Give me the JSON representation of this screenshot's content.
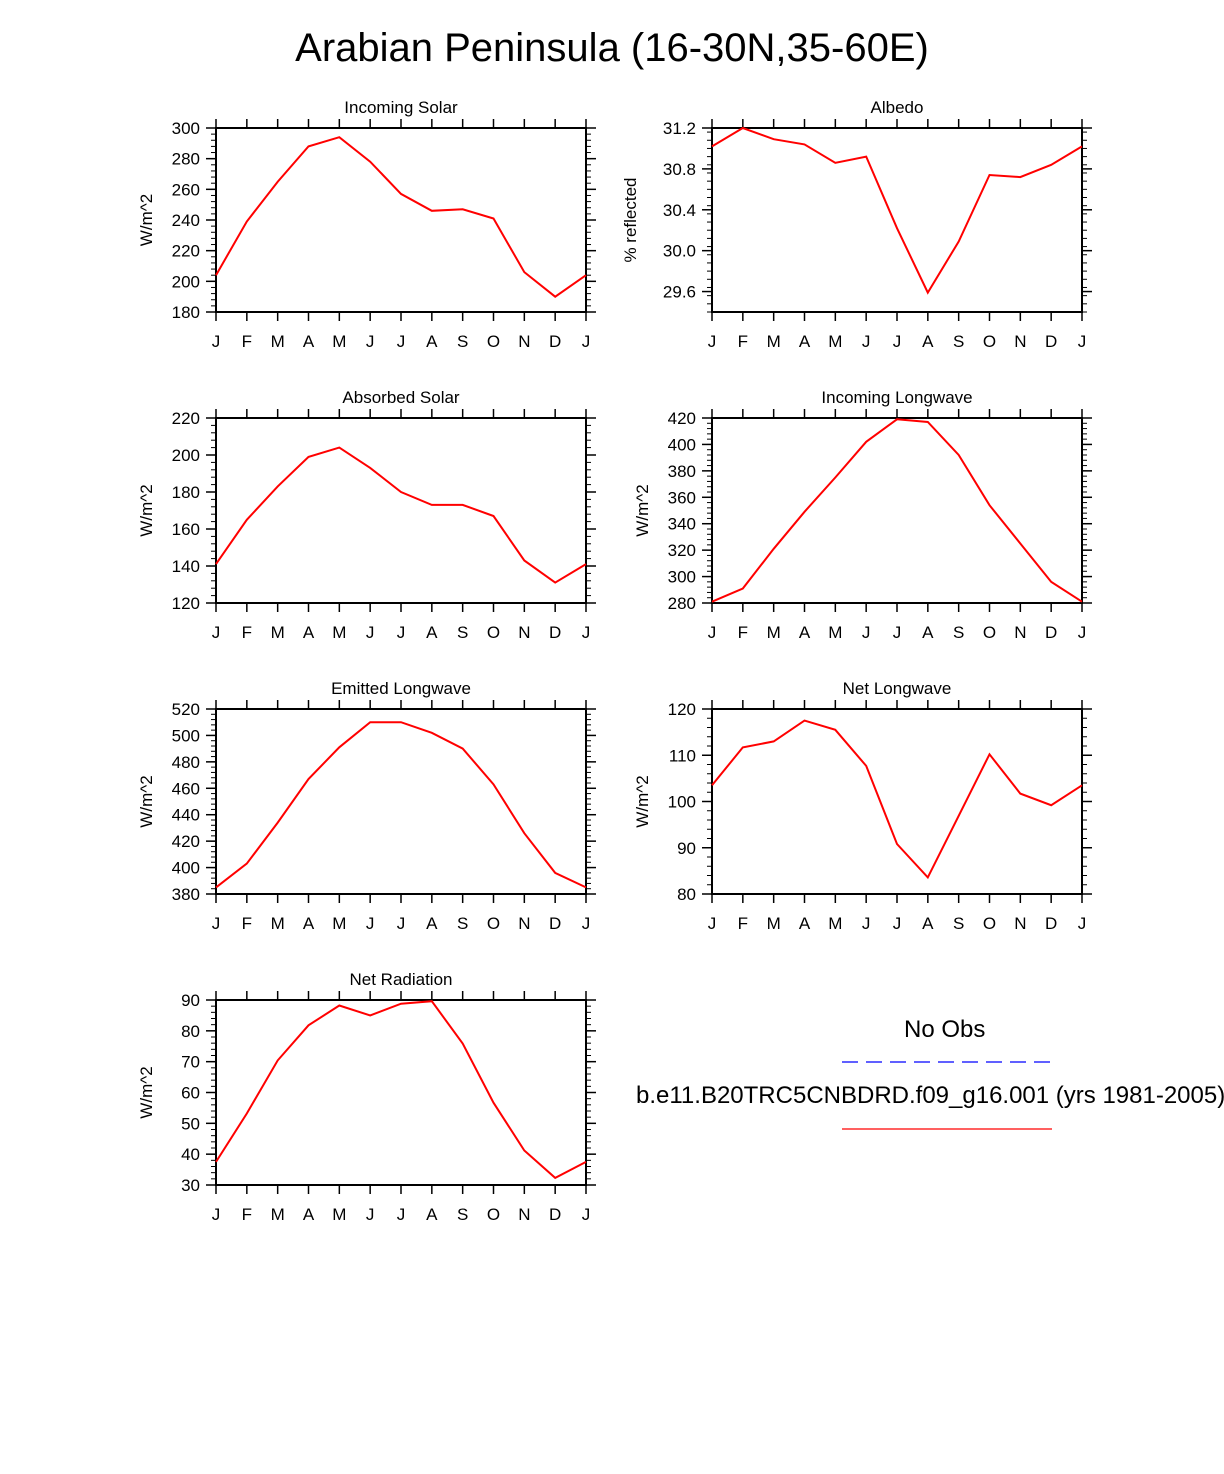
{
  "title": "Arabian Peninsula (16-30N,35-60E)",
  "months": [
    "J",
    "F",
    "M",
    "A",
    "M",
    "J",
    "J",
    "A",
    "S",
    "O",
    "N",
    "D",
    "J"
  ],
  "legend": {
    "obs_label": "No Obs",
    "obs_color": "#0000ff",
    "model_label": "b.e11.B20TRC5CNBDRD.f09_g16.001 (yrs 1981-2005)",
    "model_color": "#ff0000"
  },
  "chart_data": [
    {
      "type": "line",
      "title": "Incoming Solar",
      "ylabel": "W/m^2",
      "ylim": [
        180,
        300
      ],
      "yticks": [
        "180",
        "200",
        "220",
        "240",
        "260",
        "280",
        "300"
      ],
      "x": [
        "J",
        "F",
        "M",
        "A",
        "M",
        "J",
        "J",
        "A",
        "S",
        "O",
        "N",
        "D",
        "J"
      ],
      "series": [
        {
          "values": [
            204,
            239,
            265,
            288,
            294,
            278,
            257,
            246,
            247,
            241,
            206,
            190,
            204
          ]
        }
      ]
    },
    {
      "type": "line",
      "title": "Albedo",
      "ylabel": "% reflected",
      "ylim": [
        29.4,
        31.2
      ],
      "yticks": [
        "29.6",
        "30.0",
        "30.4",
        "30.8",
        "31.2"
      ],
      "x": [
        "J",
        "F",
        "M",
        "A",
        "M",
        "J",
        "J",
        "A",
        "S",
        "O",
        "N",
        "D",
        "J"
      ],
      "series": [
        {
          "values": [
            31.02,
            31.2,
            31.09,
            31.04,
            30.86,
            30.92,
            30.22,
            29.59,
            30.09,
            30.74,
            30.72,
            30.84,
            31.02
          ]
        }
      ]
    },
    {
      "type": "line",
      "title": "Absorbed Solar",
      "ylabel": "W/m^2",
      "ylim": [
        120,
        220
      ],
      "yticks": [
        "120",
        "140",
        "160",
        "180",
        "200",
        "220"
      ],
      "x": [
        "J",
        "F",
        "M",
        "A",
        "M",
        "J",
        "J",
        "A",
        "S",
        "O",
        "N",
        "D",
        "J"
      ],
      "series": [
        {
          "values": [
            141,
            165,
            183,
            199,
            204,
            193,
            180,
            173,
            173,
            167,
            143,
            131,
            141
          ]
        }
      ]
    },
    {
      "type": "line",
      "title": "Incoming Longwave",
      "ylabel": "W/m^2",
      "ylim": [
        280,
        420
      ],
      "yticks": [
        "280",
        "300",
        "320",
        "340",
        "360",
        "380",
        "400",
        "420"
      ],
      "x": [
        "J",
        "F",
        "M",
        "A",
        "M",
        "J",
        "J",
        "A",
        "S",
        "O",
        "N",
        "D",
        "J"
      ],
      "series": [
        {
          "values": [
            281,
            291,
            321,
            349,
            375,
            402,
            419,
            417,
            392,
            354,
            325,
            296,
            281
          ]
        }
      ]
    },
    {
      "type": "line",
      "title": "Emitted Longwave",
      "ylabel": "W/m^2",
      "ylim": [
        380,
        520
      ],
      "yticks": [
        "380",
        "400",
        "420",
        "440",
        "460",
        "480",
        "500",
        "520"
      ],
      "x": [
        "J",
        "F",
        "M",
        "A",
        "M",
        "J",
        "J",
        "A",
        "S",
        "O",
        "N",
        "D",
        "J"
      ],
      "series": [
        {
          "values": [
            385,
            403,
            434,
            467,
            491,
            510,
            510,
            502,
            490,
            463,
            426,
            396,
            385
          ]
        }
      ]
    },
    {
      "type": "line",
      "title": "Net Longwave",
      "ylabel": "W/m^2",
      "ylim": [
        80,
        120
      ],
      "yticks": [
        "80",
        "90",
        "100",
        "110",
        "120"
      ],
      "x": [
        "J",
        "F",
        "M",
        "A",
        "M",
        "J",
        "J",
        "A",
        "S",
        "O",
        "N",
        "D",
        "J"
      ],
      "series": [
        {
          "values": [
            103.5,
            111.7,
            113.0,
            117.5,
            115.5,
            107.7,
            90.8,
            83.6,
            96.9,
            110.2,
            101.7,
            99.2,
            103.5
          ]
        }
      ]
    },
    {
      "type": "line",
      "title": "Net Radiation",
      "ylabel": "W/m^2",
      "ylim": [
        30,
        90
      ],
      "yticks": [
        "30",
        "40",
        "50",
        "60",
        "70",
        "80",
        "90"
      ],
      "x": [
        "J",
        "F",
        "M",
        "A",
        "M",
        "J",
        "J",
        "A",
        "S",
        "O",
        "N",
        "D",
        "J"
      ],
      "series": [
        {
          "values": [
            37.5,
            53.2,
            70.4,
            81.8,
            88.2,
            85.0,
            88.8,
            89.6,
            75.9,
            56.7,
            41.2,
            32.3,
            37.5
          ]
        }
      ]
    }
  ]
}
